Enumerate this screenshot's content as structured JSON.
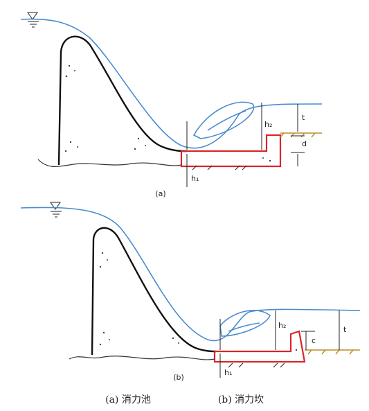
{
  "diagram_a": {
    "label": "(a)",
    "h1": "h₁",
    "h2": "h₂",
    "t": "t",
    "d": "d"
  },
  "diagram_b": {
    "label": "(b)",
    "h1": "h₁",
    "h2": "h₂",
    "t": "t",
    "c": "c"
  },
  "captions": [
    "(a) 消力池",
    "(b) 消力坎"
  ]
}
